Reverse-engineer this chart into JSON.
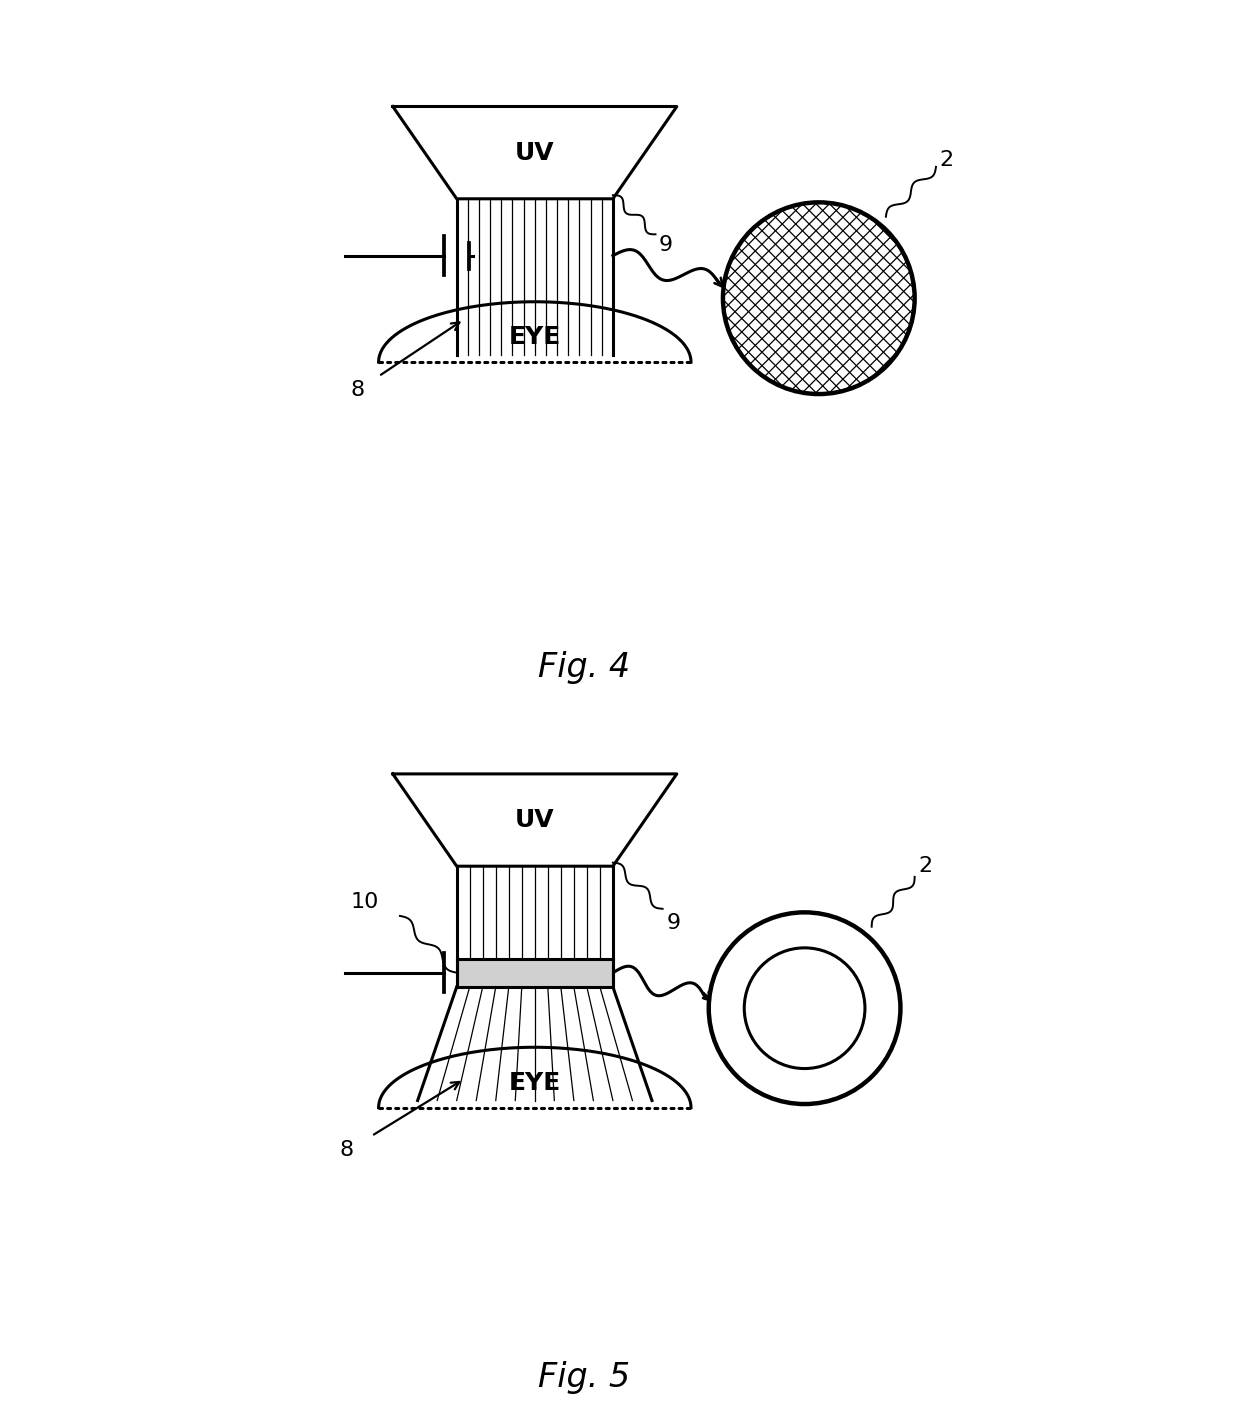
{
  "fig4_title": "Fig. 4",
  "fig5_title": "Fig. 5",
  "background_color": "#ffffff",
  "line_color": "#000000",
  "uv_text": "UV",
  "eye_text": "EYE",
  "font_size_label": 16,
  "font_size_uv_eye": 18,
  "font_size_fig": 24
}
